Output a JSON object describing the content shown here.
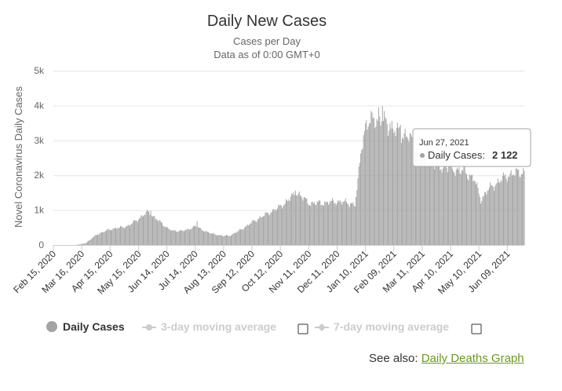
{
  "chart_data": {
    "type": "bar",
    "title": "Daily New Cases",
    "subtitle_lines": [
      "Cases per Day",
      "Data as of 0:00 GMT+0"
    ],
    "ylabel": "Novel Coronavirus Daily Cases",
    "xlabel": "",
    "ylim": [
      0,
      5000
    ],
    "y_ticks": [
      0,
      1000,
      2000,
      3000,
      4000,
      5000
    ],
    "y_tick_labels": [
      "0",
      "1k",
      "2k",
      "3k",
      "4k",
      "5k"
    ],
    "x_tick_labels": [
      "Feb 15, 2020",
      "Mar 16, 2020",
      "Apr 15, 2020",
      "May 15, 2020",
      "Jun 14, 2020",
      "Jul 14, 2020",
      "Aug 13, 2020",
      "Sep 12, 2020",
      "Oct 12, 2020",
      "Nov 11, 2020",
      "Dec 11, 2020",
      "Jan 10, 2021",
      "Feb 09, 2021",
      "Mar 11, 2021",
      "Apr 10, 2021",
      "May 10, 2021",
      "Jun 09, 2021"
    ],
    "x_start": "2020-02-15",
    "x_end": "2021-06-27",
    "grid": true,
    "series_color": "#a3a3a3",
    "anchors": [
      [
        "2020-02-15",
        0
      ],
      [
        "2020-03-10",
        0
      ],
      [
        "2020-03-20",
        50
      ],
      [
        "2020-04-01",
        300
      ],
      [
        "2020-04-15",
        450
      ],
      [
        "2020-04-30",
        520
      ],
      [
        "2020-05-05",
        560
      ],
      [
        "2020-05-15",
        750
      ],
      [
        "2020-05-25",
        950
      ],
      [
        "2020-06-05",
        700
      ],
      [
        "2020-06-14",
        500
      ],
      [
        "2020-06-20",
        400
      ],
      [
        "2020-07-05",
        420
      ],
      [
        "2020-07-14",
        550
      ],
      [
        "2020-07-20",
        450
      ],
      [
        "2020-08-01",
        320
      ],
      [
        "2020-08-13",
        260
      ],
      [
        "2020-08-20",
        270
      ],
      [
        "2020-09-01",
        450
      ],
      [
        "2020-09-12",
        650
      ],
      [
        "2020-09-25",
        850
      ],
      [
        "2020-10-12",
        1100
      ],
      [
        "2020-10-25",
        1400
      ],
      [
        "2020-10-30",
        1500
      ],
      [
        "2020-11-05",
        1350
      ],
      [
        "2020-11-11",
        1200
      ],
      [
        "2020-11-25",
        1200
      ],
      [
        "2020-12-11",
        1250
      ],
      [
        "2020-12-25",
        1200
      ],
      [
        "2020-12-30",
        1150
      ],
      [
        "2021-01-02",
        1800
      ],
      [
        "2021-01-06",
        2900
      ],
      [
        "2021-01-10",
        3400
      ],
      [
        "2021-01-20",
        3650
      ],
      [
        "2021-02-01",
        3500
      ],
      [
        "2021-02-09",
        3300
      ],
      [
        "2021-02-25",
        3100
      ],
      [
        "2021-03-11",
        2500
      ],
      [
        "2021-03-25",
        2300
      ],
      [
        "2021-04-10",
        2200
      ],
      [
        "2021-04-25",
        2100
      ],
      [
        "2021-05-05",
        1900
      ],
      [
        "2021-05-12",
        1300
      ],
      [
        "2021-05-20",
        1600
      ],
      [
        "2021-06-09",
        2000
      ],
      [
        "2021-06-27",
        2122
      ]
    ],
    "highlights": [
      [
        "2020-05-28",
        980
      ],
      [
        "2020-07-16",
        680
      ],
      [
        "2020-10-28",
        1560
      ],
      [
        "2021-01-24",
        3950
      ],
      [
        "2021-01-28",
        3980
      ],
      [
        "2021-02-05",
        3500
      ],
      [
        "2021-02-16",
        3450
      ]
    ],
    "legend": {
      "placement": "bottom-left",
      "items": [
        {
          "label": "Daily Cases",
          "active": true
        },
        {
          "label": "3-day moving average",
          "active": false
        },
        {
          "label": "7-day moving average",
          "active": false
        }
      ]
    },
    "tooltip": {
      "date": "Jun 27, 2021",
      "series_label": "Daily Cases:",
      "value_text": "2 122"
    }
  },
  "see_also": {
    "prefix": "See also:",
    "link_text": "Daily Deaths Graph"
  }
}
